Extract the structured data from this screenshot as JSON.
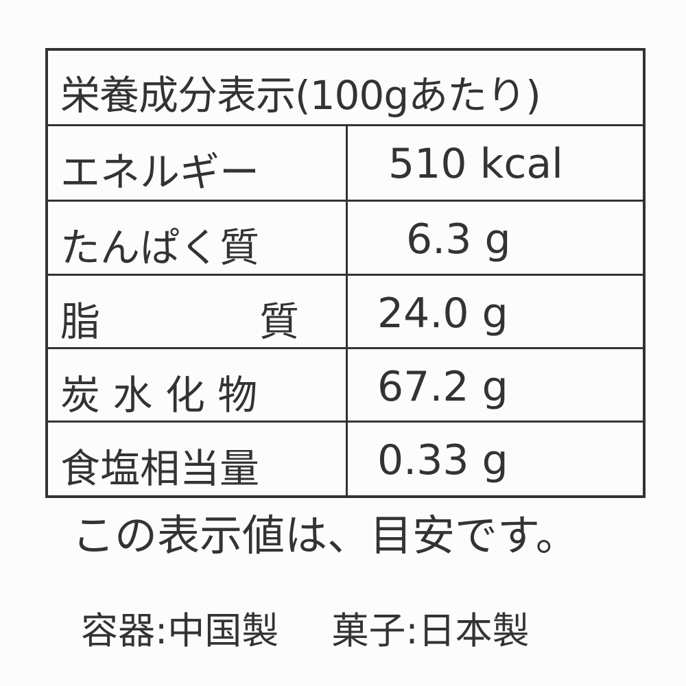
{
  "table": {
    "header": "栄養成分表示(100gあたり)",
    "rows": [
      {
        "label": "エネルギー",
        "value": "510 kcal"
      },
      {
        "label": "たんぱく質",
        "value": "6.3 g"
      },
      {
        "label": "脂　　　　質",
        "value": "24.0 g"
      },
      {
        "label": "炭 水 化 物",
        "value": "67.2 g"
      },
      {
        "label": "食塩相当量",
        "value": "0.33 g"
      }
    ]
  },
  "note": "この表示値は、目安です。",
  "origin": {
    "container": "容器:中国製",
    "confection": "菓子:日本製"
  }
}
